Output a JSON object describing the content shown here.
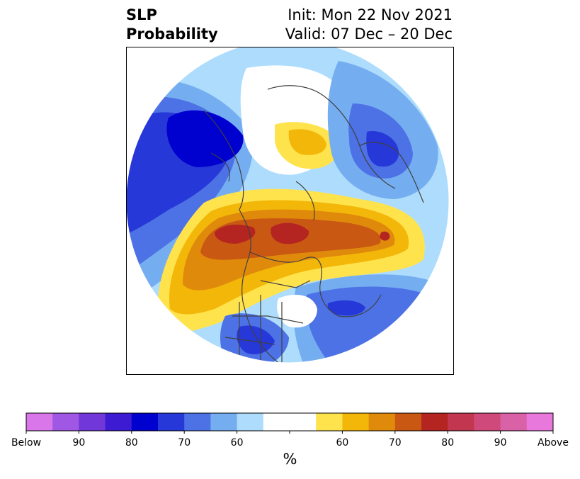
{
  "header": {
    "title_lines": [
      "SLP",
      "Probability"
    ],
    "info_lines": [
      "Init: Mon 22 Nov 2021",
      "Valid: 07 Dec – 20 Dec"
    ]
  },
  "colorbar": {
    "unit": "%",
    "colors": [
      "#d977ea",
      "#a057e3",
      "#7137d8",
      "#3d1bd2",
      "#0000cf",
      "#2638d8",
      "#4d72e5",
      "#75aef0",
      "#aedcfc",
      "#ffffff",
      "#ffffff",
      "#ffe34d",
      "#f3b70a",
      "#e08a0c",
      "#c95813",
      "#b42521",
      "#c23650",
      "#cf4a7a",
      "#d962a7",
      "#e978dd"
    ],
    "tick_labels": [
      "Below",
      "90",
      "80",
      "70",
      "60",
      "",
      "60",
      "70",
      "80",
      "90",
      "Above"
    ]
  },
  "map": {
    "projection": "north-polar-stereographic",
    "regions": [
      {
        "name": "northwest-pacific-below",
        "category": "below",
        "level": 80
      },
      {
        "name": "siberia-below",
        "category": "below",
        "level": 70
      },
      {
        "name": "arctic-above",
        "category": "above",
        "level": 60
      },
      {
        "name": "north-pacific-alaska-canada-above",
        "category": "above",
        "level": 80
      },
      {
        "name": "north-atlantic-below",
        "category": "below",
        "level": 70
      },
      {
        "name": "gulf-below",
        "category": "below",
        "level": 60
      }
    ]
  }
}
